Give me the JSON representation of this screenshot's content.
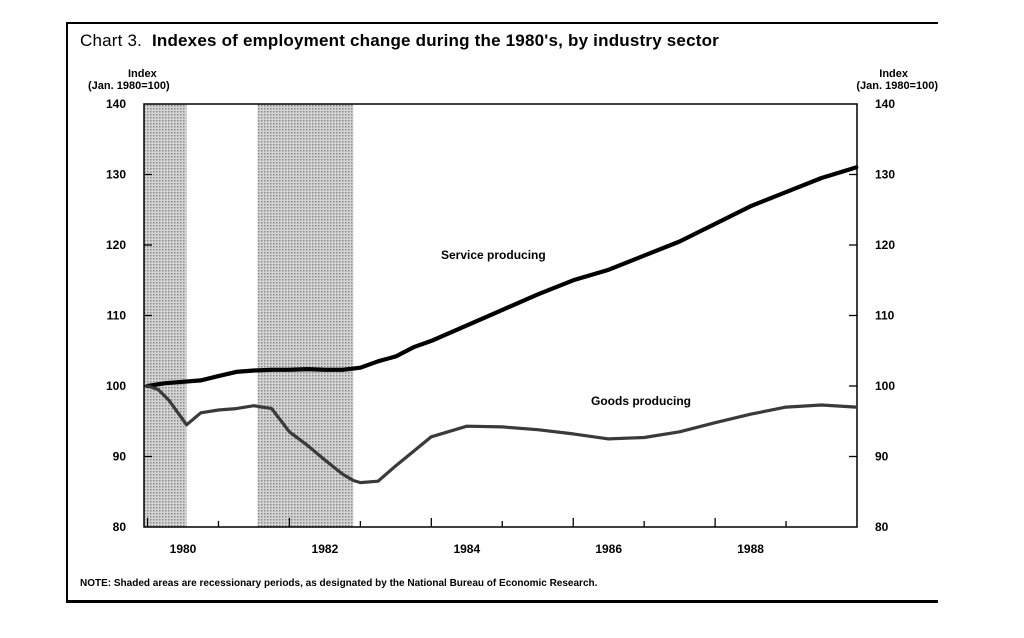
{
  "chart_data": {
    "type": "line",
    "title_lead": "Chart 3.",
    "title": "Indexes of employment change during the 1980's, by industry sector",
    "ylabel_left": [
      "Index",
      "(Jan. 1980=100)"
    ],
    "ylabel_right": [
      "Index",
      "(Jan. 1980=100)"
    ],
    "ylim": [
      80,
      140
    ],
    "yticks": [
      80,
      90,
      100,
      110,
      120,
      130,
      140
    ],
    "xlim": [
      1979.95,
      1990.0
    ],
    "xticks": [
      1980,
      1982,
      1984,
      1986,
      1988
    ],
    "xtick_labels": [
      "1980",
      "1982",
      "1984",
      "1986",
      "1988"
    ],
    "recessions": [
      [
        1979.95,
        1980.55
      ],
      [
        1981.55,
        1982.9
      ]
    ],
    "series": [
      {
        "name": "Service producing",
        "label": "Service producing",
        "x": [
          1980.0,
          1980.25,
          1980.5,
          1980.75,
          1981.0,
          1981.25,
          1981.5,
          1981.75,
          1982.0,
          1982.25,
          1982.5,
          1982.75,
          1983.0,
          1983.25,
          1983.5,
          1983.75,
          1984.0,
          1984.5,
          1985.0,
          1985.5,
          1986.0,
          1986.5,
          1987.0,
          1987.5,
          1988.0,
          1988.5,
          1989.0,
          1989.5,
          1989.99
        ],
        "values": [
          100.0,
          100.4,
          100.6,
          100.8,
          101.4,
          102.0,
          102.2,
          102.3,
          102.3,
          102.4,
          102.3,
          102.3,
          102.6,
          103.5,
          104.2,
          105.5,
          106.4,
          108.6,
          110.8,
          113.0,
          115.0,
          116.5,
          118.5,
          120.5,
          123.0,
          125.5,
          127.5,
          129.5,
          131.0
        ]
      },
      {
        "name": "Goods producing",
        "label": "Goods producing",
        "x": [
          1980.0,
          1980.15,
          1980.3,
          1980.55,
          1980.75,
          1981.0,
          1981.25,
          1981.5,
          1981.75,
          1982.0,
          1982.25,
          1982.5,
          1982.75,
          1982.9,
          1983.0,
          1983.25,
          1983.5,
          1984.0,
          1984.5,
          1985.0,
          1985.5,
          1986.0,
          1986.5,
          1987.0,
          1987.5,
          1988.0,
          1988.5,
          1989.0,
          1989.5,
          1989.99
        ],
        "values": [
          100.0,
          99.5,
          98.0,
          94.5,
          96.2,
          96.6,
          96.8,
          97.2,
          96.8,
          93.5,
          91.6,
          89.5,
          87.5,
          86.6,
          86.3,
          86.5,
          88.7,
          92.8,
          94.3,
          94.2,
          93.8,
          93.2,
          92.5,
          92.7,
          93.5,
          94.8,
          96.0,
          97.0,
          97.3,
          97.0
        ]
      }
    ]
  },
  "note": "NOTE: Shaded areas are recessionary periods, as designated by the National Bureau of Economic Research."
}
